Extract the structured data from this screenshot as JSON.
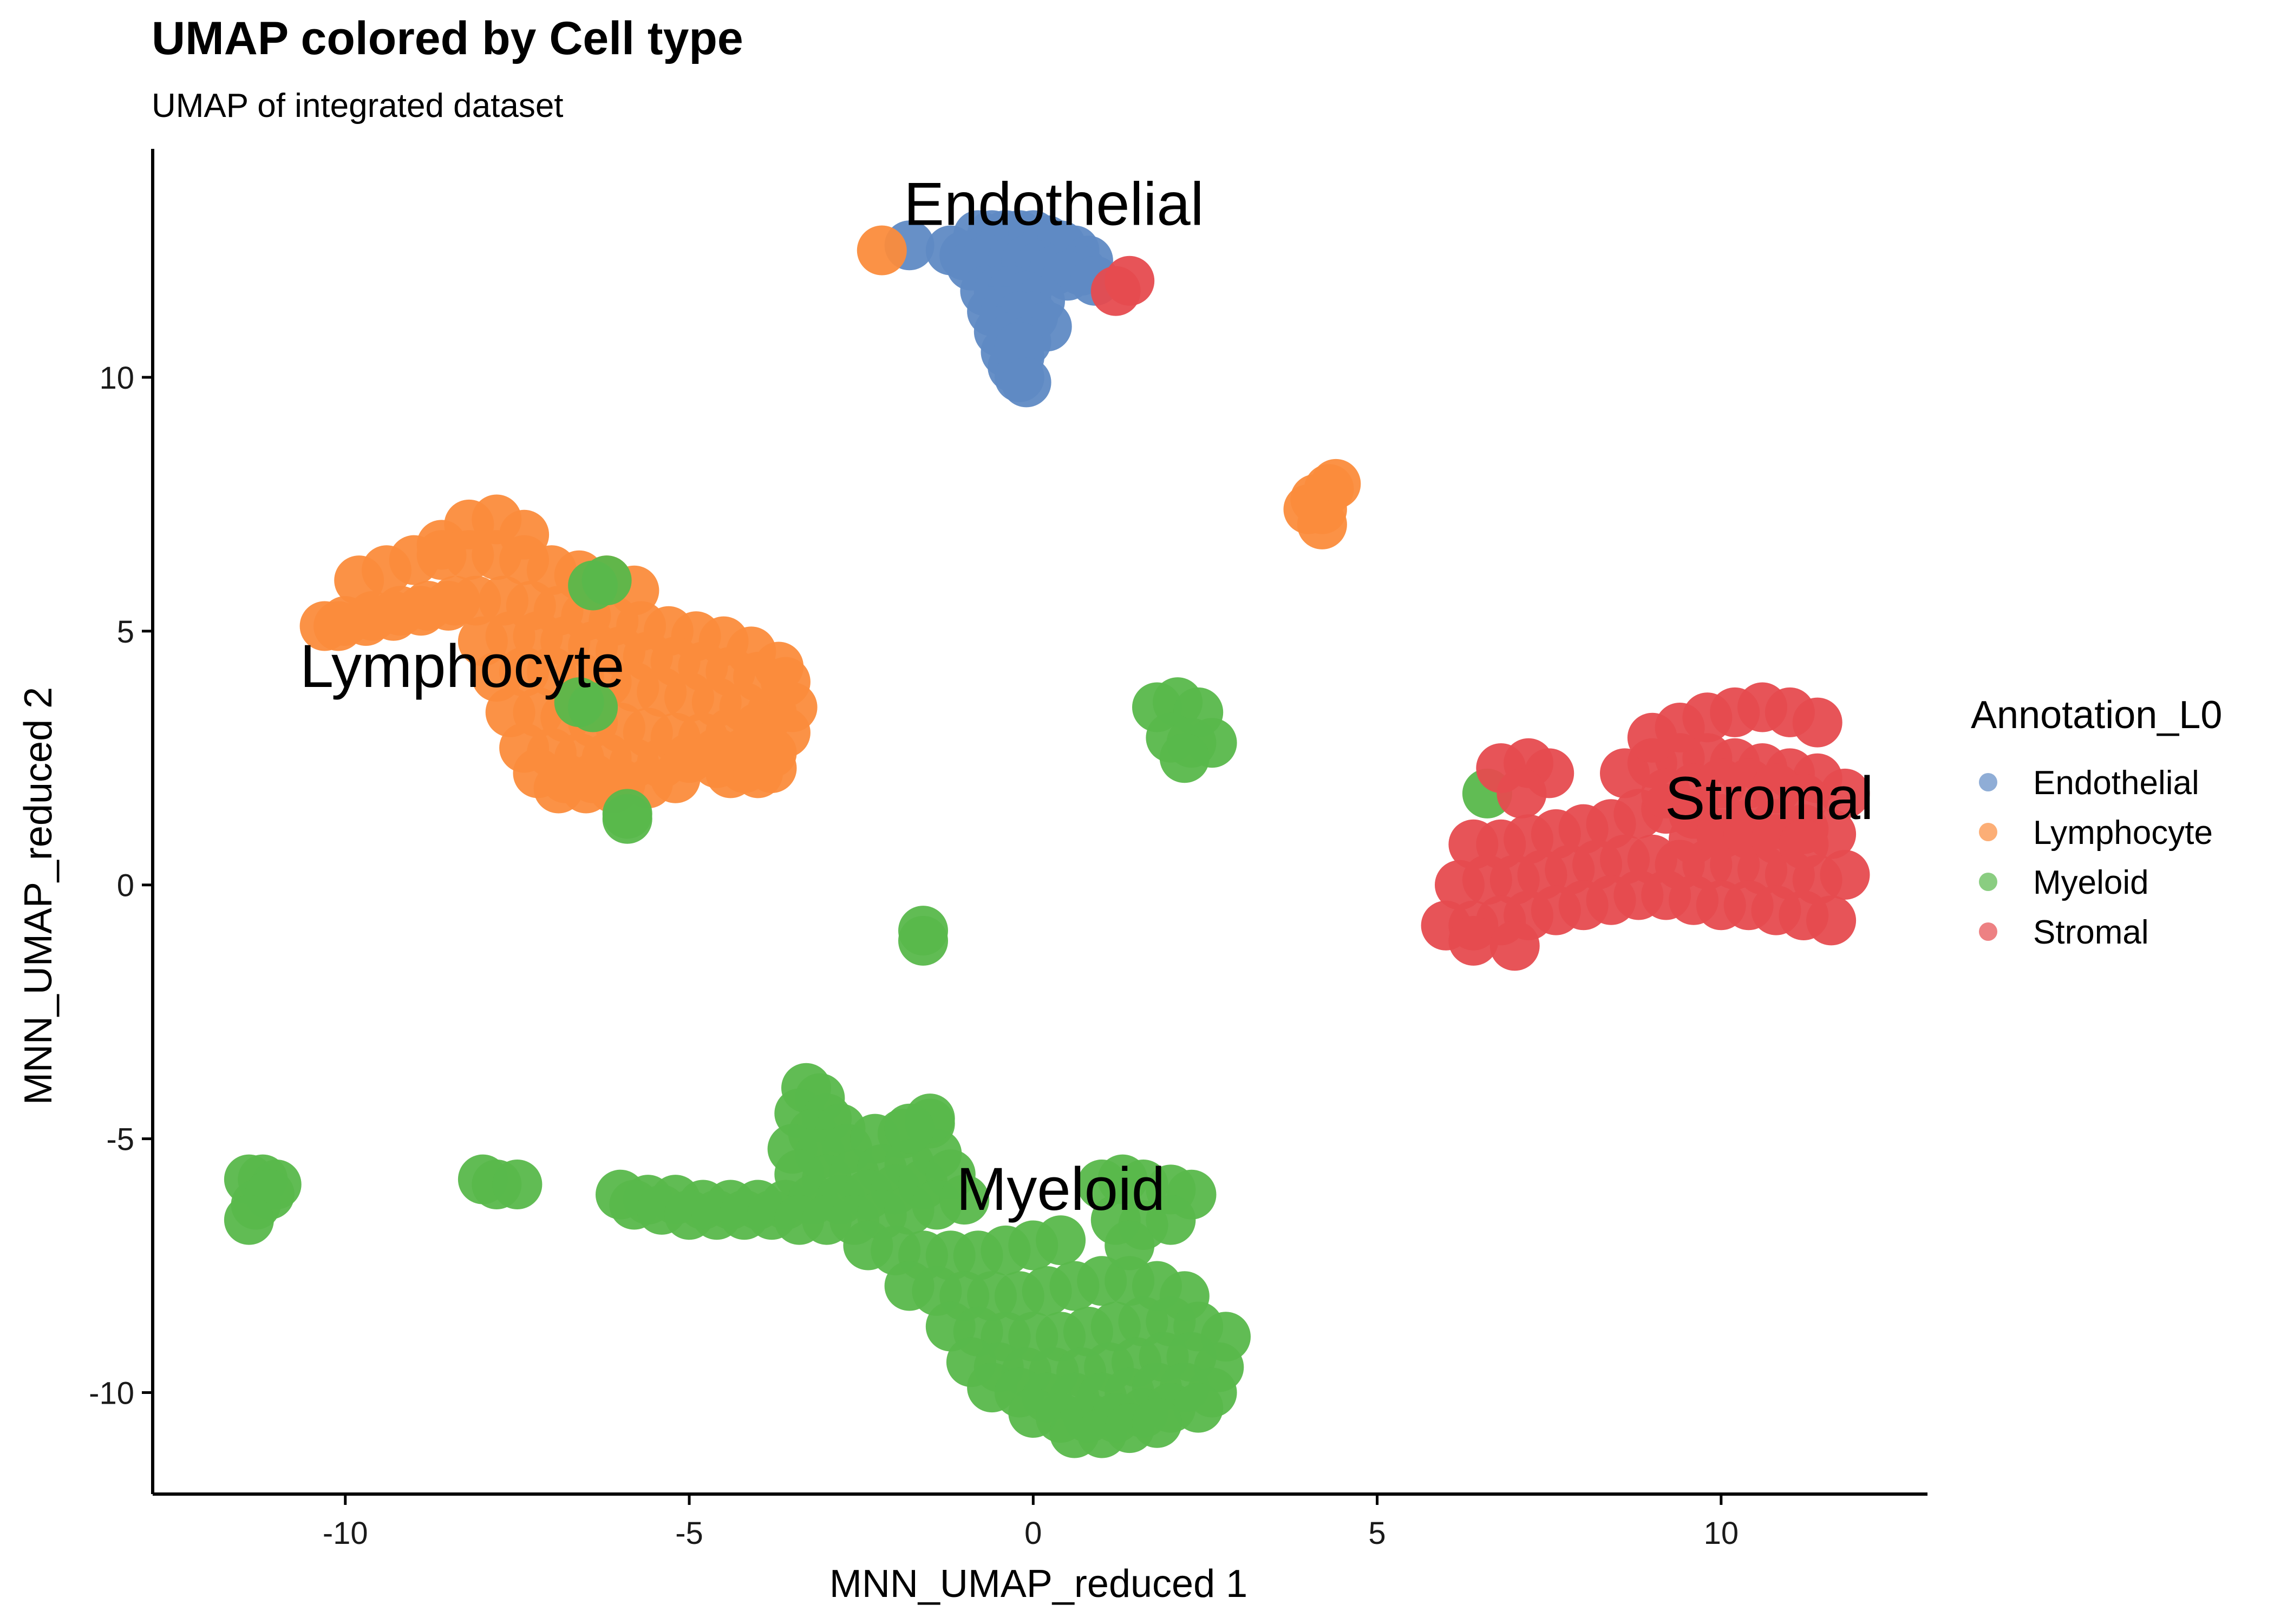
{
  "chart_data": {
    "type": "scatter",
    "title": "UMAP colored by Cell type",
    "subtitle": "UMAP of integrated dataset",
    "xlabel": "MNN_UMAP_reduced 1",
    "ylabel": "MNN_UMAP_reduced 2",
    "xlim": [
      -12.8,
      13
    ],
    "ylim": [
      -12,
      14.5
    ],
    "x_ticks": [
      -10,
      -5,
      0,
      5,
      10
    ],
    "x_tick_labels": [
      "-10",
      "-5",
      "0",
      "5",
      "10"
    ],
    "y_ticks": [
      -10,
      -5,
      0,
      5,
      10
    ],
    "y_tick_labels": [
      "-10",
      "-5",
      "0",
      "5",
      "10"
    ],
    "grid": false,
    "legend": {
      "title": "Annotation_L0",
      "position": "right",
      "entries": [
        "Endothelial",
        "Lymphocyte",
        "Myeloid",
        "Stromal"
      ]
    },
    "colors": {
      "Endothelial": "#5f8ac4",
      "Lymphocyte": "#fb8c3c",
      "Myeloid": "#59b84b",
      "Stromal": "#e64b4f"
    },
    "cluster_labels": [
      {
        "text": "Endothelial",
        "x": 0.3,
        "y": 13.0
      },
      {
        "text": "Lymphocyte",
        "x": -8.3,
        "y": 3.9
      },
      {
        "text": "Stromal",
        "x": 10.7,
        "y": 1.3
      },
      {
        "text": "Myeloid",
        "x": 0.4,
        "y": -6.4
      }
    ],
    "series": [
      {
        "name": "Endothelial",
        "x": [
          -0.8,
          -0.6,
          -0.4,
          -0.2,
          0.0,
          0.2,
          0.4,
          0.6,
          0.8,
          -1.2,
          -1.0,
          0.7,
          -0.9,
          -0.7,
          -0.5,
          -0.3,
          -0.1,
          0.1,
          0.3,
          0.5,
          -0.7,
          -0.5,
          -0.3,
          -0.1,
          0.1,
          -0.6,
          -0.4,
          -0.2,
          0.0,
          0.2,
          -0.5,
          -0.3,
          -0.1,
          -0.4,
          -0.2,
          -0.3,
          -0.2,
          -0.2,
          -0.1,
          -1.8,
          0.9
        ],
        "y": [
          12.8,
          12.8,
          12.8,
          12.8,
          12.8,
          12.7,
          12.6,
          12.5,
          12.3,
          12.5,
          12.4,
          12.1,
          12.2,
          12.3,
          12.3,
          12.3,
          12.3,
          12.2,
          12.1,
          12.0,
          11.7,
          11.7,
          11.7,
          11.6,
          11.5,
          11.3,
          11.3,
          11.2,
          11.2,
          11.0,
          10.9,
          10.8,
          10.7,
          10.5,
          10.4,
          10.2,
          10.0,
          10.6,
          9.9,
          12.6,
          11.9
        ]
      },
      {
        "name": "Lymphocyte",
        "x": [
          -10.3,
          -10.0,
          -9.6,
          -9.2,
          -8.8,
          -8.4,
          -8.6,
          -8.2,
          -7.8,
          -7.4,
          -9.8,
          -9.4,
          -9.0,
          -8.6,
          -8.2,
          -7.8,
          -7.4,
          -7.0,
          -6.6,
          -6.2,
          -5.8,
          -10.1,
          -9.7,
          -9.3,
          -8.9,
          -8.5,
          -8.1,
          -7.7,
          -7.3,
          -6.9,
          -6.5,
          -6.1,
          -5.7,
          -5.3,
          -4.9,
          -4.5,
          -4.1,
          -3.7,
          -8.0,
          -7.6,
          -7.2,
          -6.8,
          -6.4,
          -6.0,
          -5.6,
          -5.2,
          -4.8,
          -4.4,
          -4.0,
          -3.6,
          -7.8,
          -7.4,
          -7.0,
          -6.6,
          -6.2,
          -5.8,
          -5.4,
          -5.0,
          -4.6,
          -4.2,
          -3.8,
          -3.5,
          -7.6,
          -7.2,
          -6.8,
          -6.4,
          -6.0,
          -5.6,
          -5.2,
          -4.8,
          -4.4,
          -4.0,
          -3.6,
          -7.4,
          -7.0,
          -6.6,
          -6.2,
          -5.8,
          -5.4,
          -5.0,
          -4.6,
          -4.2,
          -3.8,
          -7.2,
          -6.8,
          -6.4,
          -6.0,
          -5.6,
          -5.2,
          -4.6,
          -4.2,
          -3.8,
          -6.9,
          -6.5,
          -6.1,
          -4.4,
          -4.0,
          4.2,
          4.3,
          4.4,
          4.1,
          4.0,
          4.2,
          -2.2
        ],
        "y": [
          5.1,
          5.2,
          5.3,
          5.4,
          5.5,
          5.6,
          6.7,
          7.1,
          7.2,
          6.9,
          6.0,
          6.2,
          6.4,
          6.5,
          6.5,
          6.5,
          6.4,
          6.2,
          6.1,
          6.0,
          5.8,
          5.1,
          5.2,
          5.3,
          5.4,
          5.5,
          5.6,
          5.6,
          5.5,
          5.4,
          5.3,
          5.2,
          5.1,
          5.0,
          4.9,
          4.8,
          4.6,
          4.3,
          4.8,
          4.9,
          4.9,
          4.8,
          4.7,
          4.6,
          4.5,
          4.4,
          4.3,
          4.2,
          4.1,
          4.0,
          4.1,
          4.2,
          4.2,
          4.1,
          4.0,
          3.9,
          3.8,
          3.7,
          3.6,
          3.5,
          3.4,
          3.5,
          3.4,
          3.4,
          3.3,
          3.2,
          3.1,
          3.0,
          2.9,
          2.9,
          3.0,
          3.1,
          3.0,
          2.7,
          2.6,
          2.5,
          2.5,
          2.4,
          2.4,
          2.5,
          2.6,
          2.6,
          2.6,
          2.2,
          2.1,
          2.1,
          2.0,
          2.0,
          2.1,
          2.4,
          2.3,
          2.3,
          1.9,
          1.9,
          1.9,
          2.2,
          2.2,
          7.4,
          7.8,
          7.9,
          7.6,
          7.4,
          7.1,
          12.5
        ]
      },
      {
        "name": "Myeloid",
        "x": [
          -3.3,
          -3.1,
          -3.4,
          -3.0,
          -3.2,
          -2.8,
          -3.5,
          -3.1,
          -2.7,
          -2.3,
          -1.9,
          -1.5,
          -3.4,
          -3.0,
          -2.6,
          -2.2,
          -1.8,
          -1.4,
          -6.0,
          -5.6,
          -5.2,
          -4.8,
          -4.4,
          -4.0,
          -3.6,
          -3.2,
          -2.8,
          -2.4,
          -2.0,
          -1.6,
          -1.2,
          -5.8,
          -5.4,
          -5.0,
          -4.6,
          -4.2,
          -3.8,
          -3.4,
          -3.0,
          -2.6,
          -2.2,
          -1.8,
          -1.4,
          -1.0,
          -2.4,
          -2.0,
          -1.6,
          -1.2,
          -0.8,
          -0.4,
          0.0,
          0.4,
          -1.8,
          -1.4,
          -1.0,
          -0.6,
          -0.2,
          0.2,
          0.6,
          1.0,
          1.4,
          1.8,
          2.2,
          -1.2,
          -0.8,
          -0.4,
          0.0,
          0.4,
          0.8,
          1.2,
          1.6,
          2.0,
          2.4,
          2.8,
          -0.9,
          -0.5,
          -0.1,
          0.3,
          0.7,
          1.1,
          1.5,
          1.9,
          2.3,
          2.7,
          -0.6,
          -0.2,
          0.2,
          0.6,
          1.0,
          1.4,
          1.8,
          2.2,
          2.6,
          0.0,
          0.4,
          0.8,
          1.2,
          1.6,
          2.0,
          2.4,
          0.6,
          1.0,
          1.4,
          1.8,
          1.0,
          1.3,
          1.6,
          2.0,
          2.3,
          1.2,
          1.6,
          2.0,
          1.4,
          -1.5,
          -1.8,
          -11.4,
          -11.2,
          -11.0,
          -11.3,
          -11.1,
          -11.4,
          -8.0,
          -7.8,
          -7.5,
          -1.6,
          -1.6,
          -5.9,
          -5.9,
          1.8,
          2.1,
          2.4,
          2.0,
          2.3,
          2.6,
          2.2,
          -6.4,
          -6.2,
          -6.6,
          -6.4,
          6.6
        ],
        "y": [
          -4.0,
          -4.2,
          -4.5,
          -4.6,
          -4.9,
          -4.8,
          -5.2,
          -5.3,
          -5.2,
          -5.0,
          -4.9,
          -4.7,
          -5.7,
          -5.8,
          -5.7,
          -5.6,
          -5.5,
          -5.3,
          -6.1,
          -6.2,
          -6.2,
          -6.3,
          -6.3,
          -6.3,
          -6.3,
          -6.2,
          -6.2,
          -6.1,
          -6.0,
          -5.9,
          -5.7,
          -6.3,
          -6.4,
          -6.5,
          -6.5,
          -6.5,
          -6.5,
          -6.6,
          -6.6,
          -6.6,
          -6.5,
          -6.4,
          -6.3,
          -6.2,
          -7.1,
          -7.2,
          -7.3,
          -7.3,
          -7.3,
          -7.2,
          -7.1,
          -7.0,
          -7.9,
          -8.0,
          -8.1,
          -8.1,
          -8.1,
          -8.0,
          -7.9,
          -7.8,
          -7.8,
          -7.9,
          -8.1,
          -8.7,
          -8.8,
          -8.9,
          -8.9,
          -8.9,
          -8.8,
          -8.7,
          -8.6,
          -8.6,
          -8.7,
          -8.9,
          -9.4,
          -9.5,
          -9.6,
          -9.6,
          -9.6,
          -9.5,
          -9.4,
          -9.3,
          -9.3,
          -9.5,
          -9.9,
          -10.0,
          -10.1,
          -10.1,
          -10.1,
          -10.0,
          -9.9,
          -9.9,
          -10.0,
          -10.4,
          -10.5,
          -10.5,
          -10.5,
          -10.4,
          -10.3,
          -10.3,
          -10.8,
          -10.8,
          -10.7,
          -10.6,
          -5.9,
          -5.8,
          -5.9,
          -6.0,
          -6.1,
          -6.6,
          -6.7,
          -6.6,
          -7.1,
          -4.6,
          -4.8,
          -5.8,
          -5.8,
          -5.9,
          -6.3,
          -6.1,
          -6.6,
          -5.8,
          -5.9,
          -5.9,
          -0.9,
          -1.1,
          1.4,
          1.3,
          3.5,
          3.6,
          3.4,
          2.9,
          2.8,
          2.8,
          2.5,
          5.9,
          6.0,
          3.6,
          3.5,
          1.8
        ]
      },
      {
        "name": "Stromal",
        "x": [
          6.4,
          6.8,
          7.2,
          7.6,
          8.0,
          8.4,
          8.8,
          9.2,
          9.6,
          10.0,
          10.4,
          10.8,
          11.2,
          11.6,
          6.2,
          6.6,
          7.0,
          7.4,
          7.8,
          8.2,
          8.6,
          9.0,
          9.4,
          9.8,
          10.2,
          10.6,
          11.0,
          11.4,
          11.8,
          6.0,
          6.4,
          6.8,
          7.2,
          7.6,
          8.0,
          8.4,
          8.8,
          9.2,
          9.6,
          10.0,
          10.4,
          10.8,
          11.2,
          11.6,
          8.6,
          9.0,
          9.4,
          9.8,
          10.2,
          10.6,
          11.0,
          11.4,
          11.8,
          6.4,
          7.0,
          9.0,
          9.4,
          9.8,
          10.2,
          10.6,
          11.0,
          11.4,
          9.2,
          9.6,
          10.0,
          10.4,
          10.8,
          11.2,
          9.6,
          10.0,
          10.4,
          10.8,
          11.2,
          6.8,
          7.2,
          7.5,
          7.1,
          1.2,
          1.4
        ],
        "y": [
          0.8,
          0.8,
          0.9,
          1.0,
          1.1,
          1.2,
          1.4,
          1.5,
          1.4,
          1.3,
          1.2,
          1.2,
          1.1,
          1.0,
          0.0,
          0.1,
          0.1,
          0.2,
          0.3,
          0.4,
          0.5,
          0.5,
          0.4,
          0.4,
          0.4,
          0.3,
          0.2,
          0.1,
          0.2,
          -0.8,
          -0.8,
          -0.7,
          -0.6,
          -0.5,
          -0.4,
          -0.3,
          -0.2,
          -0.2,
          -0.3,
          -0.4,
          -0.4,
          -0.5,
          -0.6,
          -0.7,
          2.2,
          2.4,
          2.5,
          2.5,
          2.4,
          2.3,
          2.2,
          2.1,
          1.8,
          -1.1,
          -1.2,
          2.9,
          3.1,
          3.3,
          3.4,
          3.5,
          3.4,
          3.2,
          1.8,
          1.9,
          2.0,
          2.0,
          1.9,
          1.7,
          0.9,
          1.0,
          1.0,
          0.9,
          0.8,
          2.3,
          2.4,
          2.2,
          1.8,
          11.7,
          11.9
        ]
      }
    ]
  }
}
